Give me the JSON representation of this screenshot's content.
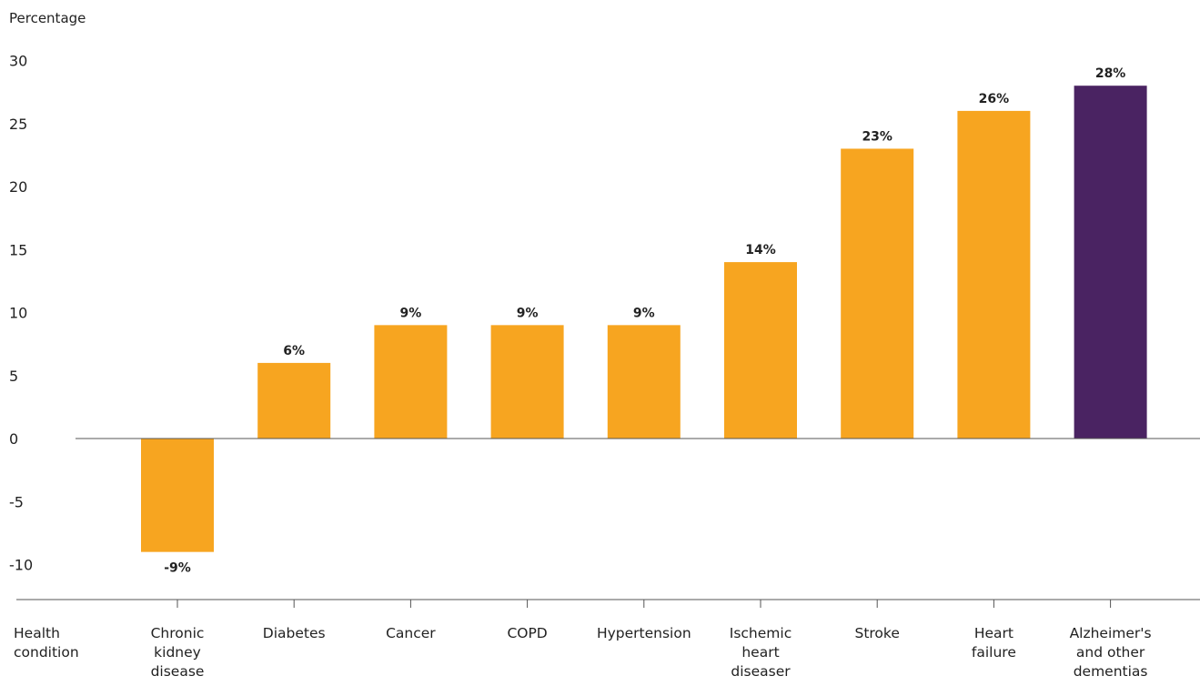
{
  "chart_data": {
    "type": "bar",
    "title": "",
    "ylabel": "Percentage",
    "xlabel": "Health condition",
    "ylim": [
      -10,
      30
    ],
    "yticks": [
      30,
      25,
      20,
      15,
      10,
      5,
      0,
      -5,
      -10
    ],
    "categories": [
      [
        "Chronic",
        "kidney",
        "disease"
      ],
      [
        "Diabetes"
      ],
      [
        "Cancer"
      ],
      [
        "COPD"
      ],
      [
        "Hypertension"
      ],
      [
        "Ischemic",
        "heart",
        "diseaser"
      ],
      [
        "Stroke"
      ],
      [
        "Heart",
        "failure"
      ],
      [
        "Alzheimer's",
        "and other",
        "dementias"
      ]
    ],
    "values": [
      -9,
      6,
      9,
      9,
      9,
      14,
      23,
      26,
      28
    ],
    "labels": [
      "-9%",
      "6%",
      "9%",
      "9%",
      "9%",
      "14%",
      "23%",
      "26%",
      "28%"
    ],
    "grid": false,
    "colors": {
      "default": "#F7A520",
      "highlight": "#4A2362",
      "axis": "#555555"
    },
    "highlight_index": 8
  }
}
